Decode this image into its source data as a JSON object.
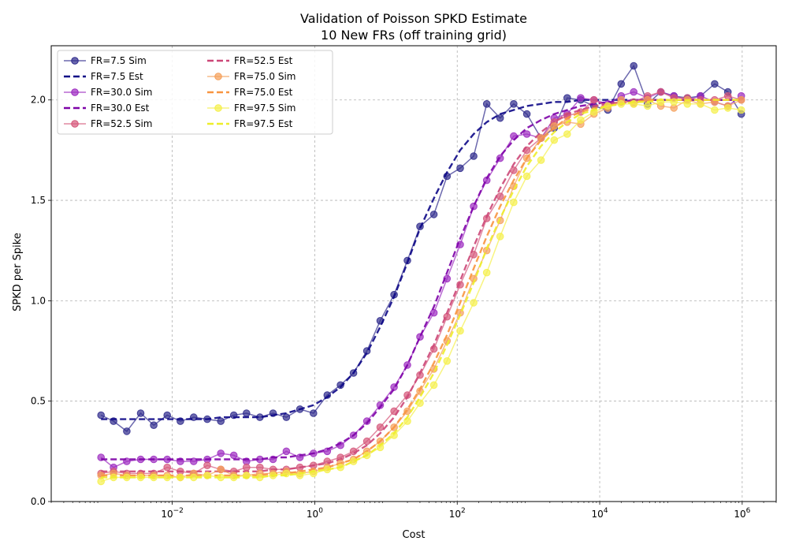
{
  "chart_data": {
    "type": "line",
    "title": "Validation of Poisson SPKD Estimate",
    "subtitle": "10 New FRs (off training grid)",
    "xlabel": "Cost",
    "ylabel": "SPKD per Spike",
    "xscale": "log",
    "xlim": [
      0.0002,
      3000000
    ],
    "ylim": [
      0,
      2.27
    ],
    "grid": true,
    "legend_position": "top-left",
    "x_tick_labels": [
      "10^-2",
      "10^0",
      "10^2",
      "10^4",
      "10^6"
    ],
    "y_tick_labels": [
      "0.0",
      "0.5",
      "1.0",
      "1.5",
      "2.0"
    ],
    "x": [
      0.001,
      0.0015,
      0.0023,
      0.0036,
      0.0055,
      0.0085,
      0.013,
      0.02,
      0.031,
      0.048,
      0.073,
      0.11,
      0.17,
      0.26,
      0.4,
      0.62,
      0.96,
      1.5,
      2.3,
      3.5,
      5.4,
      8.3,
      13,
      20,
      30,
      47,
      72,
      110,
      170,
      260,
      400,
      620,
      950,
      1500,
      2300,
      3500,
      5400,
      8300,
      13000,
      20000,
      30000,
      47000,
      72000,
      110000,
      170000,
      260000,
      410000,
      630000,
      970000
    ],
    "series": [
      {
        "name": "FR=7.5 Sim",
        "style": "sim",
        "color": "#2e2a8c",
        "values": [
          0.43,
          0.4,
          0.35,
          0.44,
          0.38,
          0.43,
          0.4,
          0.42,
          0.41,
          0.4,
          0.43,
          0.44,
          0.42,
          0.44,
          0.42,
          0.46,
          0.44,
          0.53,
          0.58,
          0.64,
          0.75,
          0.9,
          1.03,
          1.2,
          1.37,
          1.43,
          1.62,
          1.66,
          1.72,
          1.98,
          1.91,
          1.98,
          1.93,
          1.81,
          1.86,
          2.01,
          2.0,
          1.97,
          1.95,
          2.08,
          2.17,
          1.98,
          2.04,
          2.02,
          2.01,
          2.02,
          2.08,
          2.04,
          1.93
        ]
      },
      {
        "name": "FR=7.5 Est",
        "style": "est",
        "color": "#0d0887",
        "values": [
          0.41,
          0.41,
          0.41,
          0.41,
          0.41,
          0.41,
          0.41,
          0.41,
          0.41,
          0.42,
          0.42,
          0.42,
          0.42,
          0.43,
          0.44,
          0.46,
          0.48,
          0.52,
          0.57,
          0.64,
          0.74,
          0.87,
          1.02,
          1.19,
          1.36,
          1.51,
          1.64,
          1.75,
          1.83,
          1.89,
          1.93,
          1.95,
          1.97,
          1.98,
          1.99,
          1.99,
          2.0,
          2.0,
          2.0,
          2.0,
          2.0,
          2.0,
          2.0,
          2.0,
          2.0,
          2.0,
          2.0,
          2.0,
          2.0
        ]
      },
      {
        "name": "FR=30.0 Sim",
        "style": "sim",
        "color": "#9c2bc0",
        "values": [
          0.22,
          0.17,
          0.2,
          0.21,
          0.21,
          0.21,
          0.2,
          0.2,
          0.21,
          0.24,
          0.23,
          0.2,
          0.21,
          0.21,
          0.25,
          0.22,
          0.24,
          0.25,
          0.28,
          0.33,
          0.4,
          0.48,
          0.57,
          0.68,
          0.82,
          0.94,
          1.11,
          1.28,
          1.47,
          1.6,
          1.71,
          1.82,
          1.83,
          1.81,
          1.91,
          1.93,
          2.01,
          2.0,
          1.98,
          2.02,
          2.04,
          2.01,
          2.04,
          2.02,
          2.0,
          2.02,
          1.99,
          1.97,
          2.02
        ]
      },
      {
        "name": "FR=30.0 Est",
        "style": "est",
        "color": "#7e03a8",
        "values": [
          0.21,
          0.21,
          0.21,
          0.21,
          0.21,
          0.21,
          0.21,
          0.21,
          0.21,
          0.21,
          0.21,
          0.21,
          0.21,
          0.22,
          0.22,
          0.23,
          0.24,
          0.26,
          0.29,
          0.33,
          0.39,
          0.47,
          0.56,
          0.68,
          0.82,
          0.97,
          1.14,
          1.31,
          1.47,
          1.61,
          1.72,
          1.8,
          1.86,
          1.9,
          1.93,
          1.95,
          1.97,
          1.98,
          1.99,
          1.99,
          2.0,
          2.0,
          2.0,
          2.0,
          2.0,
          2.0,
          2.0,
          2.0,
          2.0
        ]
      },
      {
        "name": "FR=52.5 Sim",
        "style": "sim",
        "color": "#d5577a",
        "values": [
          0.14,
          0.15,
          0.14,
          0.14,
          0.14,
          0.17,
          0.15,
          0.14,
          0.18,
          0.16,
          0.15,
          0.17,
          0.17,
          0.16,
          0.16,
          0.17,
          0.18,
          0.2,
          0.22,
          0.25,
          0.3,
          0.37,
          0.45,
          0.53,
          0.63,
          0.76,
          0.92,
          1.08,
          1.23,
          1.41,
          1.52,
          1.65,
          1.75,
          1.81,
          1.89,
          1.92,
          1.94,
          2.0,
          1.97,
          1.99,
          1.99,
          2.02,
          2.04,
          2.01,
          2.01,
          2.0,
          2.0,
          2.02,
          2.0
        ]
      },
      {
        "name": "FR=52.5 Est",
        "style": "est",
        "color": "#cc4778",
        "values": [
          0.15,
          0.15,
          0.15,
          0.15,
          0.15,
          0.15,
          0.15,
          0.15,
          0.15,
          0.15,
          0.15,
          0.15,
          0.15,
          0.16,
          0.16,
          0.17,
          0.18,
          0.19,
          0.21,
          0.24,
          0.28,
          0.34,
          0.42,
          0.52,
          0.64,
          0.78,
          0.94,
          1.1,
          1.27,
          1.42,
          1.56,
          1.68,
          1.77,
          1.84,
          1.89,
          1.93,
          1.95,
          1.97,
          1.98,
          1.99,
          1.99,
          2.0,
          2.0,
          2.0,
          2.0,
          2.0,
          2.0,
          2.0,
          2.0
        ]
      },
      {
        "name": "FR=75.0 Sim",
        "style": "sim",
        "color": "#f5a05a",
        "values": [
          0.13,
          0.14,
          0.13,
          0.13,
          0.13,
          0.13,
          0.12,
          0.14,
          0.13,
          0.16,
          0.13,
          0.13,
          0.14,
          0.14,
          0.15,
          0.14,
          0.15,
          0.17,
          0.19,
          0.21,
          0.25,
          0.3,
          0.37,
          0.45,
          0.55,
          0.66,
          0.8,
          0.94,
          1.11,
          1.25,
          1.4,
          1.57,
          1.71,
          1.81,
          1.87,
          1.89,
          1.88,
          1.93,
          1.96,
          2.0,
          1.98,
          2.0,
          1.97,
          1.96,
          2.0,
          1.98,
          1.99,
          1.97,
          2.0
        ]
      },
      {
        "name": "FR=75.0 Est",
        "style": "est",
        "color": "#f89540",
        "values": [
          0.13,
          0.13,
          0.13,
          0.13,
          0.13,
          0.13,
          0.13,
          0.13,
          0.13,
          0.13,
          0.13,
          0.13,
          0.13,
          0.14,
          0.14,
          0.15,
          0.16,
          0.17,
          0.19,
          0.21,
          0.25,
          0.3,
          0.37,
          0.46,
          0.56,
          0.69,
          0.83,
          0.99,
          1.16,
          1.32,
          1.47,
          1.6,
          1.71,
          1.8,
          1.86,
          1.91,
          1.94,
          1.96,
          1.97,
          1.98,
          1.99,
          2.0,
          2.0,
          2.0,
          2.0,
          2.0,
          2.0,
          2.0,
          2.0
        ]
      },
      {
        "name": "FR=97.5 Sim",
        "style": "sim",
        "color": "#f5f04a",
        "values": [
          0.1,
          0.12,
          0.12,
          0.12,
          0.12,
          0.12,
          0.12,
          0.12,
          0.13,
          0.12,
          0.12,
          0.13,
          0.12,
          0.13,
          0.14,
          0.13,
          0.14,
          0.16,
          0.17,
          0.2,
          0.23,
          0.27,
          0.33,
          0.4,
          0.49,
          0.58,
          0.7,
          0.85,
          0.99,
          1.14,
          1.32,
          1.49,
          1.62,
          1.7,
          1.8,
          1.83,
          1.9,
          1.94,
          1.97,
          1.98,
          1.98,
          1.97,
          1.99,
          1.99,
          1.98,
          1.98,
          1.95,
          1.96,
          1.95
        ]
      },
      {
        "name": "FR=97.5 Est",
        "style": "est",
        "color": "#eded2a",
        "values": [
          0.12,
          0.12,
          0.12,
          0.12,
          0.12,
          0.12,
          0.12,
          0.12,
          0.12,
          0.12,
          0.12,
          0.12,
          0.12,
          0.13,
          0.13,
          0.14,
          0.15,
          0.16,
          0.17,
          0.2,
          0.23,
          0.28,
          0.34,
          0.42,
          0.52,
          0.64,
          0.78,
          0.93,
          1.09,
          1.26,
          1.41,
          1.55,
          1.67,
          1.77,
          1.84,
          1.89,
          1.93,
          1.95,
          1.97,
          1.98,
          1.99,
          1.99,
          2.0,
          2.0,
          2.0,
          2.0,
          2.0,
          2.0,
          2.0
        ]
      }
    ]
  }
}
